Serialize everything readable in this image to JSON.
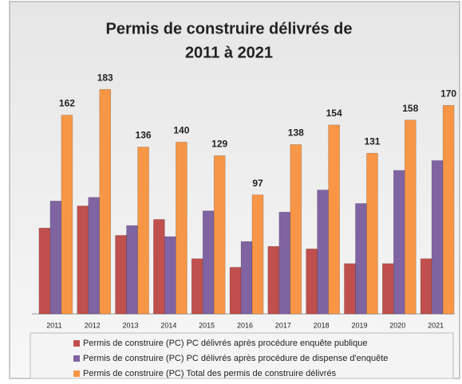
{
  "chart_data": {
    "type": "bar",
    "title": [
      "Permis de construire délivrés de",
      "2011 à 2021"
    ],
    "categories": [
      "2011",
      "2012",
      "2013",
      "2014",
      "2015",
      "2016",
      "2017",
      "2018",
      "2019",
      "2020",
      "2021"
    ],
    "series": [
      {
        "name": "Permis de construire (PC) PC délivrés après procédure enquête publique",
        "color": "#c0504d",
        "data_labels": false,
        "values": [
          70,
          88,
          64,
          77,
          45,
          38,
          55,
          53,
          41,
          41,
          45
        ]
      },
      {
        "name": "Permis de construire (PC) PC délivrés après procédure de dispense d'enquête",
        "color": "#8064a2",
        "data_labels": false,
        "values": [
          92,
          95,
          72,
          63,
          84,
          59,
          83,
          101,
          90,
          117,
          125
        ]
      },
      {
        "name": "Permis de construire (PC) Total des permis de construire délivrés",
        "color": "#f79646",
        "data_labels": true,
        "values": [
          162,
          183,
          136,
          140,
          129,
          97,
          138,
          154,
          131,
          158,
          170
        ]
      }
    ],
    "ylim": [
      0,
      200
    ],
    "grid": false,
    "legend": "bottom"
  }
}
